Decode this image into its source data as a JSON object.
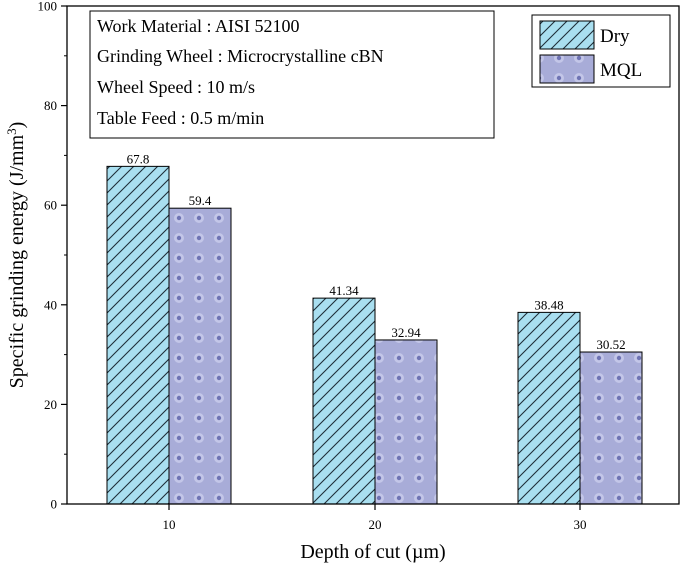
{
  "chart_data": {
    "type": "bar",
    "categories": [
      "10",
      "20",
      "30"
    ],
    "series": [
      {
        "name": "Dry",
        "values": [
          67.8,
          41.34,
          38.48
        ],
        "color": "#a9dff0",
        "pattern": "diagonal-hatch"
      },
      {
        "name": "MQL",
        "values": [
          59.4,
          32.94,
          30.52
        ],
        "color": "#a8acd8",
        "pattern": "dots"
      }
    ],
    "data_labels": [
      [
        "67.8",
        "41.34",
        "38.48"
      ],
      [
        "59.4",
        "32.94",
        "30.52"
      ]
    ],
    "xlabel": "Depth of cut (µm)",
    "ylabel_main": "Specific grinding energy (J/mm",
    "ylabel_sup": "3",
    "ylabel_close": ")",
    "ylim": [
      0,
      100
    ],
    "yticks": [
      "0",
      "20",
      "40",
      "60",
      "80",
      "100"
    ],
    "ytick_values": [
      0,
      20,
      40,
      60,
      80,
      100
    ],
    "legend_position": "top-right",
    "info_box": [
      "Work Material : AISI 52100",
      "Grinding Wheel : Microcrystalline cBN",
      "Wheel Speed : 10 m/s",
      "Table Feed : 0.5 m/min"
    ]
  }
}
